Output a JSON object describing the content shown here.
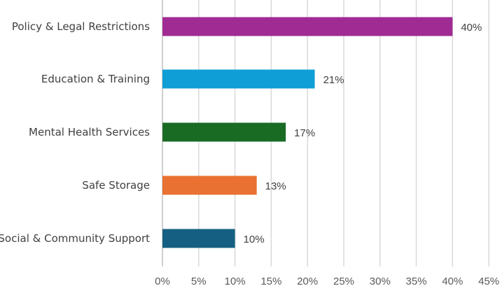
{
  "chart_data": {
    "type": "bar",
    "orientation": "horizontal",
    "title": "",
    "xlabel": "",
    "ylabel": "",
    "categories": [
      "Policy & Legal Restrictions",
      "Education & Training",
      "Mental Health Services",
      "Safe Storage",
      "Social & Community Support"
    ],
    "values": [
      40,
      21,
      17,
      13,
      10
    ],
    "value_labels": [
      "40%",
      "21%",
      "17%",
      "13%",
      "10%"
    ],
    "colors": [
      "#A02B93",
      "#0F9ED5",
      "#196B24",
      "#E97132",
      "#156082"
    ],
    "xlim": [
      0,
      45
    ],
    "x_ticks": [
      0,
      5,
      10,
      15,
      20,
      25,
      30,
      35,
      40,
      45
    ],
    "x_tick_labels": [
      "0%",
      "5%",
      "10%",
      "15%",
      "20%",
      "25%",
      "30%",
      "35%",
      "40%",
      "45%"
    ],
    "grid": true,
    "legend": "none"
  }
}
